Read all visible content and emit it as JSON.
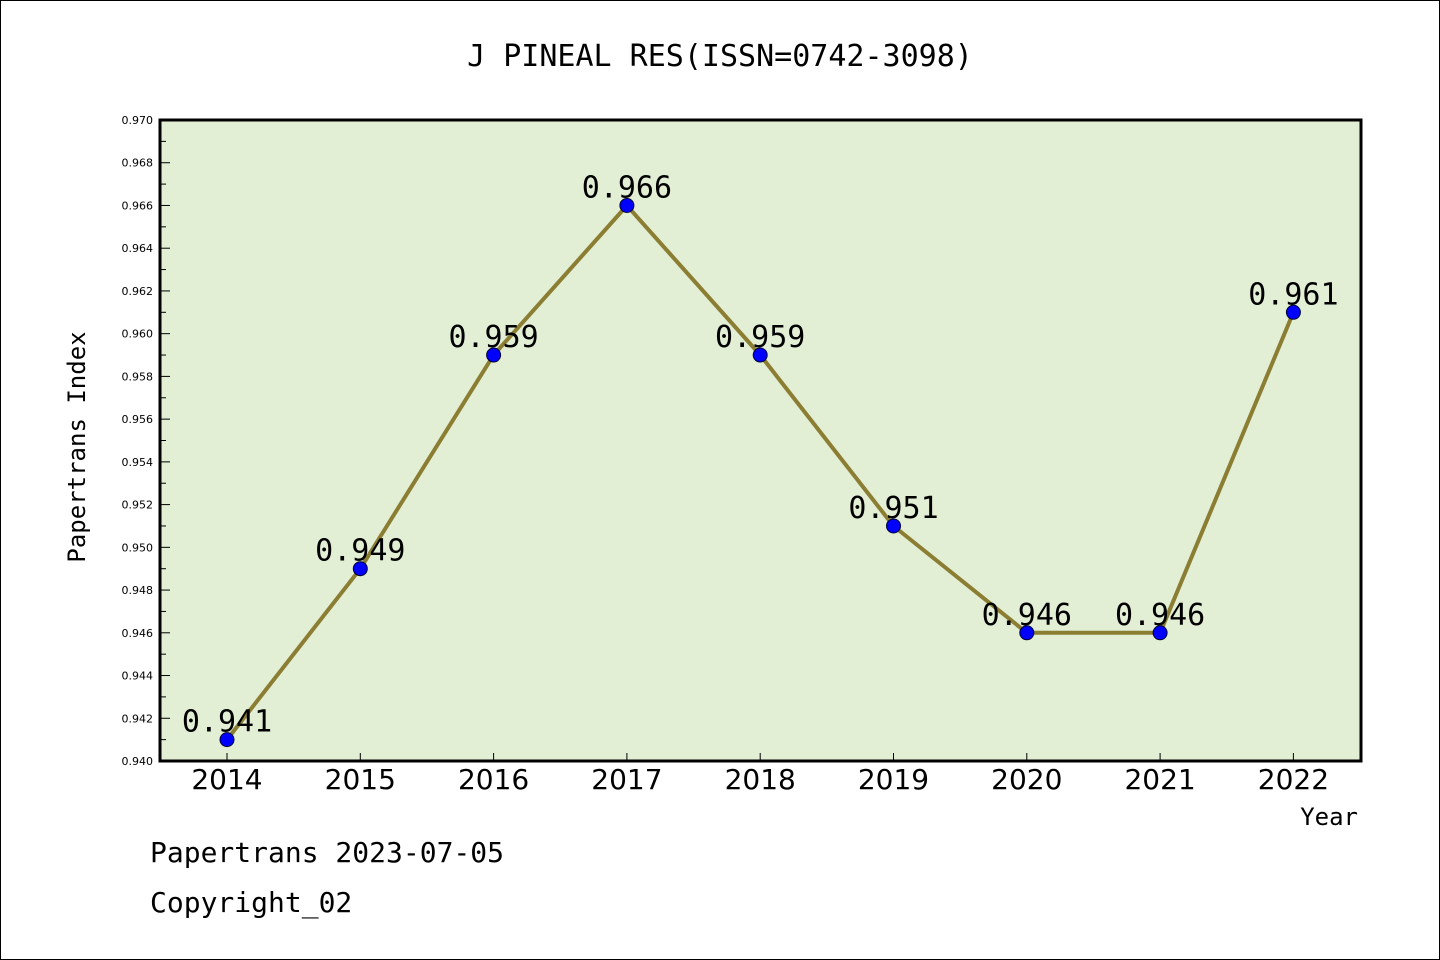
{
  "chart_data": {
    "type": "line",
    "title": "J PINEAL RES(ISSN=0742-3098)",
    "xlabel": "Year",
    "ylabel": "Papertrans Index",
    "categories": [
      "2014",
      "2015",
      "2016",
      "2017",
      "2018",
      "2019",
      "2020",
      "2021",
      "2022"
    ],
    "values": [
      0.941,
      0.949,
      0.959,
      0.966,
      0.959,
      0.951,
      0.946,
      0.946,
      0.961
    ],
    "data_labels": [
      "0.941",
      "0.949",
      "0.959",
      "0.966",
      "0.959",
      "0.951",
      "0.946",
      "0.946",
      "0.961"
    ],
    "ylim": [
      0.94,
      0.97
    ],
    "yticks": [
      "0.940",
      "0.942",
      "0.944",
      "0.946",
      "0.948",
      "0.950",
      "0.952",
      "0.954",
      "0.956",
      "0.958",
      "0.960",
      "0.962",
      "0.964",
      "0.966",
      "0.968",
      "0.970"
    ],
    "grid": false,
    "legend": "none",
    "colors": {
      "plot_background": "#e2efd5",
      "line": "#8b7d32",
      "marker": "#0000ff"
    }
  },
  "footer": {
    "line1": "Papertrans 2023-07-05",
    "line2": "Copyright_02"
  }
}
